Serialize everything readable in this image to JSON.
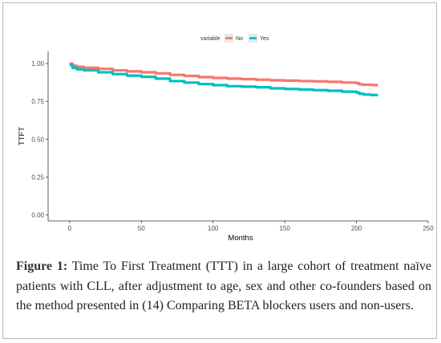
{
  "figure": {
    "caption_label": "Figure 1:",
    "caption_text": " Time To First Treatment (TTT) in a large cohort of treatment naïve patients with CLL, after adjustment to age, sex and other co-founders based on the method presented in (14) Comparing BETA blockers users and non-users."
  },
  "chart_data": {
    "type": "line",
    "xlabel": "Months",
    "ylabel": "TTFT",
    "xlim": [
      -15,
      250
    ],
    "ylim": [
      -0.04,
      1.08
    ],
    "x_ticks": [
      0,
      50,
      100,
      150,
      200,
      250
    ],
    "y_ticks": [
      0.0,
      0.25,
      0.5,
      0.75,
      1.0
    ],
    "y_tick_labels": [
      "0.00",
      "0.25",
      "0.50",
      "0.75",
      "1.00"
    ],
    "grid": false,
    "legend": {
      "title": "variable",
      "placement": "top-center"
    },
    "series": [
      {
        "name": "No",
        "color": "#f8766d",
        "x": [
          0,
          2,
          5,
          10,
          20,
          30,
          40,
          50,
          60,
          70,
          80,
          90,
          100,
          110,
          120,
          130,
          140,
          150,
          160,
          170,
          180,
          190,
          200,
          202,
          205,
          210,
          215
        ],
        "y": [
          1.0,
          0.985,
          0.978,
          0.972,
          0.965,
          0.955,
          0.948,
          0.942,
          0.935,
          0.925,
          0.918,
          0.91,
          0.905,
          0.9,
          0.897,
          0.893,
          0.889,
          0.887,
          0.884,
          0.882,
          0.879,
          0.874,
          0.87,
          0.862,
          0.86,
          0.858,
          0.858
        ]
      },
      {
        "name": "Yes",
        "color": "#00bfc4",
        "x": [
          0,
          2,
          5,
          10,
          20,
          30,
          40,
          50,
          60,
          70,
          80,
          90,
          100,
          110,
          120,
          130,
          140,
          150,
          160,
          170,
          180,
          190,
          200,
          202,
          205,
          210,
          215
        ],
        "y": [
          0.99,
          0.972,
          0.962,
          0.955,
          0.942,
          0.93,
          0.92,
          0.912,
          0.9,
          0.884,
          0.874,
          0.864,
          0.857,
          0.85,
          0.847,
          0.843,
          0.836,
          0.832,
          0.828,
          0.824,
          0.82,
          0.814,
          0.808,
          0.8,
          0.795,
          0.792,
          0.792
        ]
      }
    ]
  }
}
